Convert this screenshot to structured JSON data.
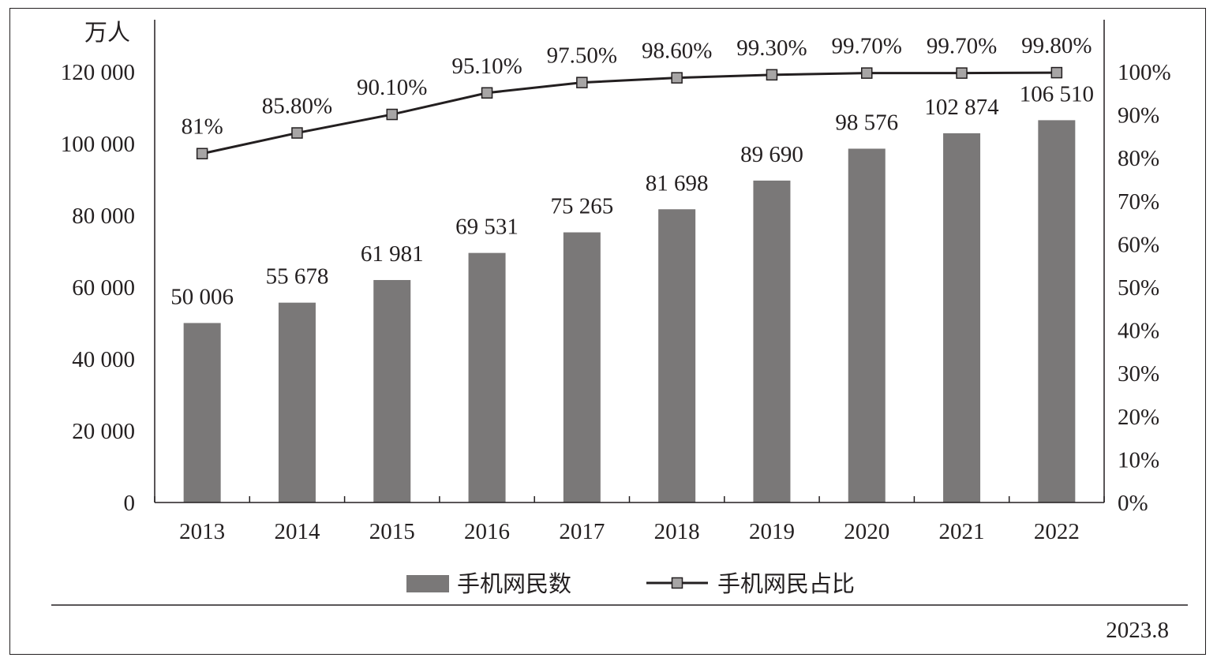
{
  "chart_data": {
    "type": "bar+line",
    "unit_left": "万人",
    "categories": [
      "2013",
      "2014",
      "2015",
      "2016",
      "2017",
      "2018",
      "2019",
      "2020",
      "2021",
      "2022"
    ],
    "series": [
      {
        "name": "手机网民数",
        "type": "bar",
        "axis": "left",
        "values": [
          50006,
          55678,
          61981,
          69531,
          75265,
          81698,
          89690,
          98576,
          102874,
          106510
        ],
        "labels": [
          "50 006",
          "55 678",
          "61 981",
          "69 531",
          "75 265",
          "81 698",
          "89 690",
          "98 576",
          "102 874",
          "106 510"
        ],
        "color": "#7a7878"
      },
      {
        "name": "手机网民占比",
        "type": "line",
        "axis": "right",
        "values": [
          81,
          85.8,
          90.1,
          95.1,
          97.5,
          98.6,
          99.3,
          99.7,
          99.7,
          99.8
        ],
        "labels": [
          "81%",
          "85.80%",
          "90.10%",
          "95.10%",
          "97.50%",
          "98.60%",
          "99.30%",
          "99.70%",
          "99.70%",
          "99.80%"
        ],
        "color": "#231f20",
        "marker_color": "#a7a5a5"
      }
    ],
    "y_left": {
      "ylim": [
        0,
        120000
      ],
      "ticks": [
        0,
        20000,
        40000,
        60000,
        80000,
        100000,
        120000
      ],
      "tick_labels": [
        "0",
        "20 000",
        "40 000",
        "60 000",
        "80 000",
        "100 000",
        "120 000"
      ]
    },
    "y_right": {
      "ylim": [
        0,
        100
      ],
      "ticks": [
        0,
        10,
        20,
        30,
        40,
        50,
        60,
        70,
        80,
        90,
        100
      ],
      "tick_labels": [
        "0%",
        "10%",
        "20%",
        "30%",
        "40%",
        "50%",
        "60%",
        "70%",
        "80%",
        "90%",
        "100%"
      ]
    },
    "legend_position": "bottom",
    "grid": false,
    "date": "2023.8"
  }
}
